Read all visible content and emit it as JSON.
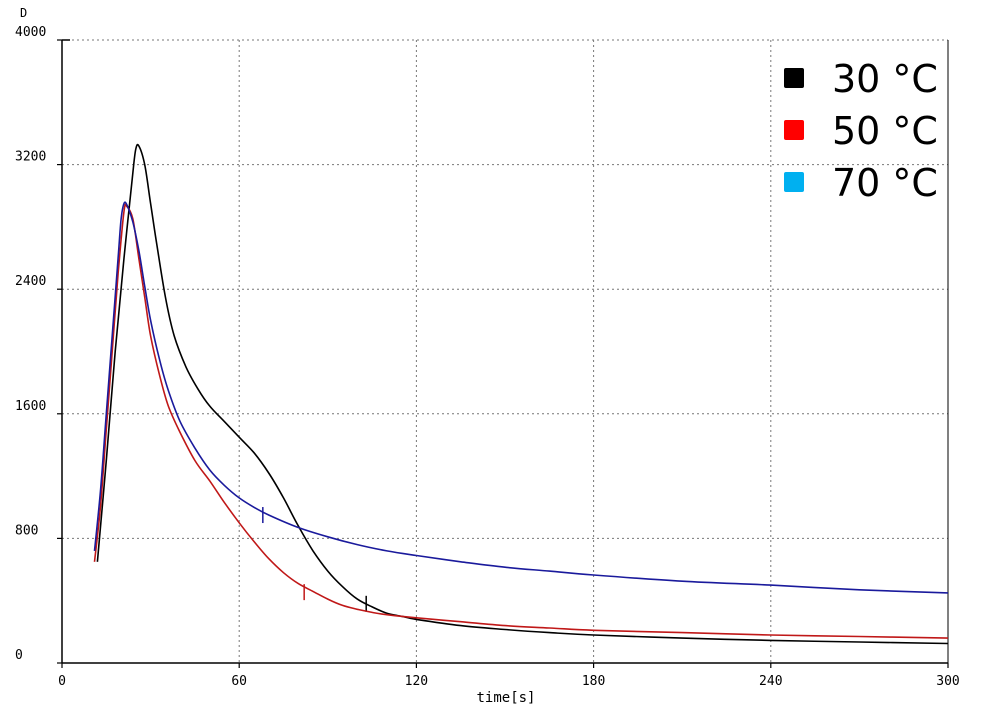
{
  "chart_data": {
    "type": "line",
    "title": "",
    "xlabel": "time[s]",
    "ylabel": "D",
    "xlim": [
      0,
      300
    ],
    "ylim": [
      0,
      4000
    ],
    "xticks": [
      0,
      60,
      120,
      180,
      240,
      300
    ],
    "yticks": [
      0,
      800,
      1600,
      2400,
      3200,
      4000
    ],
    "grid": true,
    "legend_position": "top-right",
    "series": [
      {
        "name": "30 °C",
        "color": "#000000",
        "legend_color": "#000000",
        "marker": [
          103,
          380
        ],
        "points": [
          [
            12,
            650
          ],
          [
            15,
            1300
          ],
          [
            18,
            2000
          ],
          [
            21,
            2600
          ],
          [
            24,
            3150
          ],
          [
            25,
            3300
          ],
          [
            26,
            3320
          ],
          [
            28,
            3200
          ],
          [
            30,
            2950
          ],
          [
            32,
            2700
          ],
          [
            35,
            2350
          ],
          [
            38,
            2100
          ],
          [
            42,
            1900
          ],
          [
            46,
            1760
          ],
          [
            50,
            1650
          ],
          [
            55,
            1550
          ],
          [
            60,
            1450
          ],
          [
            65,
            1350
          ],
          [
            70,
            1220
          ],
          [
            75,
            1060
          ],
          [
            80,
            880
          ],
          [
            85,
            720
          ],
          [
            90,
            590
          ],
          [
            95,
            490
          ],
          [
            100,
            410
          ],
          [
            105,
            360
          ],
          [
            110,
            320
          ],
          [
            115,
            300
          ],
          [
            120,
            280
          ],
          [
            135,
            240
          ],
          [
            150,
            215
          ],
          [
            165,
            195
          ],
          [
            180,
            180
          ],
          [
            210,
            160
          ],
          [
            240,
            145
          ],
          [
            270,
            135
          ],
          [
            300,
            125
          ]
        ]
      },
      {
        "name": "50 °C",
        "color": "#c01818",
        "legend_color": "#ff0000",
        "marker": [
          82,
          455
        ],
        "points": [
          [
            11,
            650
          ],
          [
            13,
            1000
          ],
          [
            15,
            1500
          ],
          [
            17,
            2000
          ],
          [
            19,
            2500
          ],
          [
            21,
            2900
          ],
          [
            22,
            2930
          ],
          [
            24,
            2850
          ],
          [
            26,
            2600
          ],
          [
            28,
            2350
          ],
          [
            30,
            2100
          ],
          [
            33,
            1850
          ],
          [
            36,
            1650
          ],
          [
            40,
            1480
          ],
          [
            45,
            1300
          ],
          [
            50,
            1170
          ],
          [
            55,
            1030
          ],
          [
            60,
            900
          ],
          [
            65,
            780
          ],
          [
            70,
            670
          ],
          [
            75,
            580
          ],
          [
            80,
            510
          ],
          [
            85,
            460
          ],
          [
            90,
            410
          ],
          [
            95,
            370
          ],
          [
            100,
            345
          ],
          [
            105,
            325
          ],
          [
            110,
            310
          ],
          [
            120,
            290
          ],
          [
            135,
            265
          ],
          [
            150,
            240
          ],
          [
            165,
            225
          ],
          [
            180,
            210
          ],
          [
            210,
            195
          ],
          [
            240,
            180
          ],
          [
            270,
            170
          ],
          [
            300,
            160
          ]
        ]
      },
      {
        "name": "70 °C",
        "color": "#1a1a9c",
        "legend_color": "#00b0f0",
        "marker": [
          68,
          950
        ],
        "points": [
          [
            11,
            720
          ],
          [
            13,
            1100
          ],
          [
            15,
            1600
          ],
          [
            17,
            2100
          ],
          [
            19,
            2600
          ],
          [
            20,
            2850
          ],
          [
            21,
            2950
          ],
          [
            22,
            2940
          ],
          [
            24,
            2830
          ],
          [
            26,
            2650
          ],
          [
            28,
            2420
          ],
          [
            30,
            2200
          ],
          [
            33,
            1950
          ],
          [
            36,
            1750
          ],
          [
            40,
            1550
          ],
          [
            45,
            1380
          ],
          [
            50,
            1240
          ],
          [
            55,
            1140
          ],
          [
            60,
            1060
          ],
          [
            65,
            1000
          ],
          [
            70,
            950
          ],
          [
            80,
            870
          ],
          [
            90,
            810
          ],
          [
            100,
            760
          ],
          [
            110,
            720
          ],
          [
            120,
            690
          ],
          [
            135,
            650
          ],
          [
            150,
            615
          ],
          [
            165,
            590
          ],
          [
            180,
            565
          ],
          [
            210,
            525
          ],
          [
            240,
            500
          ],
          [
            270,
            470
          ],
          [
            300,
            450
          ]
        ]
      }
    ]
  }
}
